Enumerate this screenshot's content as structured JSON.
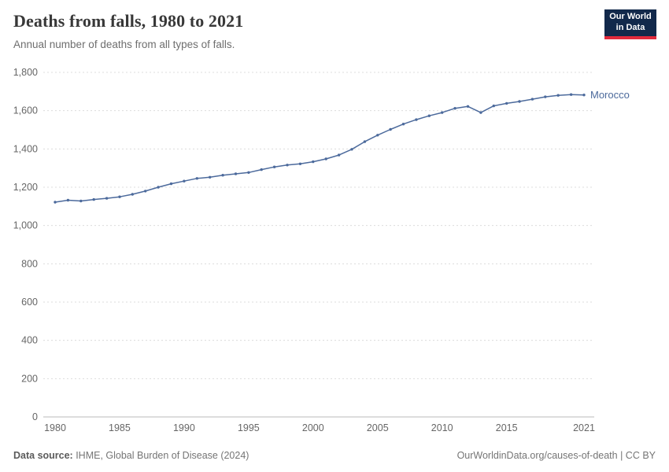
{
  "header": {
    "title": "Deaths from falls, 1980 to 2021",
    "subtitle": "Annual number of deaths from all types of falls.",
    "logo_line1": "Our World",
    "logo_line2": "in Data"
  },
  "footer": {
    "source_label": "Data source:",
    "source_text": " IHME, Global Burden of Disease (2024)",
    "right_text": "OurWorldinData.org/causes-of-death | CC BY"
  },
  "chart_data": {
    "type": "line",
    "title": "Deaths from falls, 1980 to 2021",
    "subtitle": "Annual number of deaths from all types of falls.",
    "series_label": "Morocco",
    "line_color": "#4c6a9c",
    "grid": "horizontal-dashed",
    "legend_position": "end-of-line",
    "xlabel": "",
    "ylabel": "",
    "ylim": [
      0,
      1800
    ],
    "x_ticks": [
      1980,
      1985,
      1990,
      1995,
      2000,
      2005,
      2010,
      2015,
      2021
    ],
    "y_ticks": [
      0,
      200,
      400,
      600,
      800,
      1000,
      1200,
      1400,
      1600,
      1800
    ],
    "y_tick_labels": [
      "0",
      "200",
      "400",
      "600",
      "800",
      "1,000",
      "1,200",
      "1,400",
      "1,600",
      "1,800"
    ],
    "x": [
      1980,
      1981,
      1982,
      1983,
      1984,
      1985,
      1986,
      1987,
      1988,
      1989,
      1990,
      1991,
      1992,
      1993,
      1994,
      1995,
      1996,
      1997,
      1998,
      1999,
      2000,
      2001,
      2002,
      2003,
      2004,
      2005,
      2006,
      2007,
      2008,
      2009,
      2010,
      2011,
      2012,
      2013,
      2014,
      2015,
      2016,
      2017,
      2018,
      2019,
      2020,
      2021
    ],
    "values": [
      1122,
      1132,
      1128,
      1136,
      1142,
      1150,
      1163,
      1180,
      1200,
      1218,
      1232,
      1246,
      1252,
      1263,
      1270,
      1277,
      1292,
      1306,
      1316,
      1322,
      1333,
      1348,
      1368,
      1398,
      1438,
      1472,
      1502,
      1530,
      1553,
      1573,
      1590,
      1612,
      1622,
      1590,
      1625,
      1638,
      1648,
      1660,
      1672,
      1680,
      1684,
      1682
    ]
  }
}
